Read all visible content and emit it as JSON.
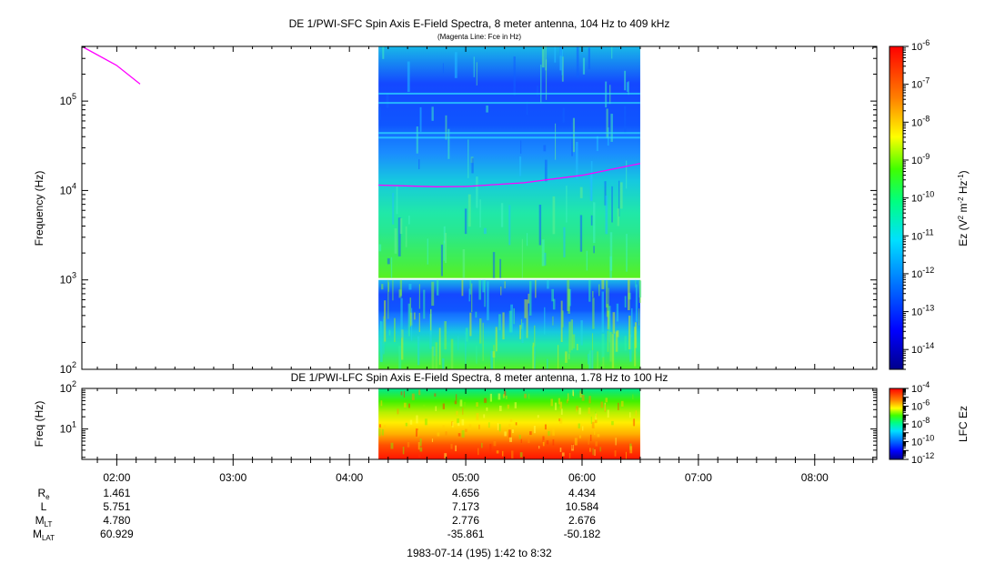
{
  "chart_data": [
    {
      "type": "heatmap",
      "title": "DE 1/PWI-SFC  Spin Axis E-Field Spectra, 8 meter antenna, 104 Hz to 409 kHz",
      "subtitle": "(Magenta Line: Fce in Hz)",
      "ylabel": "Frequency (Hz)",
      "y_scale": "log",
      "ylim": [
        100,
        409000
      ],
      "y_ticks": [
        {
          "value": 100,
          "base": "10",
          "exp": "2"
        },
        {
          "value": 1000,
          "base": "10",
          "exp": "3"
        },
        {
          "value": 10000,
          "base": "10",
          "exp": "4"
        },
        {
          "value": 100000,
          "base": "10",
          "exp": "5"
        }
      ],
      "data_time_range": [
        "04:15",
        "06:30"
      ],
      "data_gap_hz": [
        1000,
        1050
      ],
      "colorbar": {
        "label": "Ez (V2 m-2 Hz-1)",
        "scale": "log",
        "range": [
          3e-15,
          1e-06
        ],
        "ticks": [
          {
            "value": 1e-06,
            "base": "10",
            "exp": "-6"
          },
          {
            "value": 1e-07,
            "base": "10",
            "exp": "-7"
          },
          {
            "value": 1e-08,
            "base": "10",
            "exp": "-8"
          },
          {
            "value": 1e-09,
            "base": "10",
            "exp": "-9"
          },
          {
            "value": 1e-10,
            "base": "10",
            "exp": "-10"
          },
          {
            "value": 1e-11,
            "base": "10",
            "exp": "-11"
          },
          {
            "value": 1e-12,
            "base": "10",
            "exp": "-12"
          },
          {
            "value": 1e-13,
            "base": "10",
            "exp": "-13"
          },
          {
            "value": 1e-14,
            "base": "10",
            "exp": "-14"
          }
        ]
      },
      "fce_line": {
        "color": "#ff00ff",
        "segments": [
          [
            [
              "01:42",
              409000
            ],
            [
              "02:00",
              250000
            ],
            [
              "02:12",
              155000
            ]
          ],
          [
            [
              "04:15",
              11500
            ],
            [
              "04:45",
              11000
            ],
            [
              "05:00",
              11100
            ],
            [
              "05:30",
              12200
            ],
            [
              "06:00",
              14800
            ],
            [
              "06:30",
              20000
            ]
          ]
        ]
      }
    },
    {
      "type": "heatmap",
      "title": "DE 1/PWI-LFC  Spin Axis E-Field Spectra, 8 meter antenna, 1.78 Hz to 100 Hz",
      "ylabel": "Freq (Hz)",
      "y_scale": "log",
      "ylim": [
        1.78,
        100
      ],
      "y_ticks": [
        {
          "value": 10,
          "base": "10",
          "exp": "1"
        },
        {
          "value": 100,
          "base": "10",
          "exp": "2"
        }
      ],
      "data_time_range": [
        "04:15",
        "06:30"
      ],
      "colorbar": {
        "label": "LFC Ez",
        "scale": "log",
        "range": [
          1e-12,
          0.0001
        ],
        "ticks": [
          {
            "value": 0.0001,
            "base": "10",
            "exp": "-4"
          },
          {
            "value": 1e-06,
            "base": "10",
            "exp": "-6"
          },
          {
            "value": 1e-08,
            "base": "10",
            "exp": "-8"
          },
          {
            "value": 1e-10,
            "base": "10",
            "exp": "-10"
          },
          {
            "value": 1e-12,
            "base": "10",
            "exp": "-12"
          }
        ]
      }
    }
  ],
  "x_axis": {
    "range": [
      "01:42",
      "08:32"
    ],
    "ticks": [
      "02:00",
      "03:00",
      "04:00",
      "05:00",
      "06:00",
      "07:00",
      "08:00"
    ]
  },
  "ephemeris": {
    "rows": [
      {
        "label": "R",
        "sub": "e",
        "values": [
          {
            "time": "02:00",
            "text": "1.461"
          },
          {
            "time": "05:00",
            "text": "4.656"
          },
          {
            "time": "06:00",
            "text": "4.434"
          }
        ]
      },
      {
        "label": "L",
        "sub": "",
        "values": [
          {
            "time": "02:00",
            "text": "5.751"
          },
          {
            "time": "05:00",
            "text": "7.173"
          },
          {
            "time": "06:00",
            "text": "10.584"
          }
        ]
      },
      {
        "label": "M",
        "sub": "LT",
        "values": [
          {
            "time": "02:00",
            "text": "4.780"
          },
          {
            "time": "05:00",
            "text": "2.776"
          },
          {
            "time": "06:00",
            "text": "2.676"
          }
        ]
      },
      {
        "label": "M",
        "sub": "LAT",
        "values": [
          {
            "time": "02:00",
            "text": "60.929"
          },
          {
            "time": "05:00",
            "text": "-35.861"
          },
          {
            "time": "06:00",
            "text": "-50.182"
          }
        ]
      }
    ]
  },
  "footer": "1983-07-14 (195) 1:42 to 8:32"
}
